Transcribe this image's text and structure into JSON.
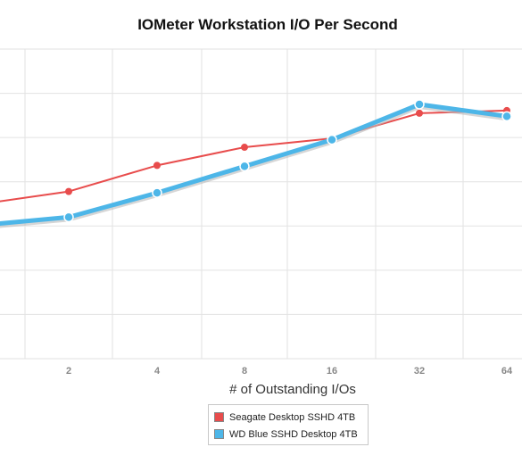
{
  "chart_data": {
    "type": "line",
    "title": "IOMeter Workstation I/O Per Second",
    "xlabel": "# of Outstanding I/Os",
    "ylabel": "",
    "x_scale": "log2",
    "x": [
      1,
      2,
      4,
      8,
      16,
      32,
      64
    ],
    "x_tick_labels": [
      "2",
      "4",
      "8",
      "16",
      "32",
      "64"
    ],
    "y_gridlines": 8,
    "grid": true,
    "legend_position": "bottom-center",
    "series": [
      {
        "name": "Seagate Desktop SSHD 4TB",
        "color": "#e84c4c",
        "values": [
          3.5,
          3.78,
          4.37,
          4.78,
          4.98,
          5.55,
          5.61
        ]
      },
      {
        "name": "WD Blue SSHD Desktop 4TB",
        "color": "#4db6e8",
        "values": [
          3.02,
          3.2,
          3.75,
          4.35,
          4.95,
          5.75,
          5.48
        ]
      }
    ]
  }
}
